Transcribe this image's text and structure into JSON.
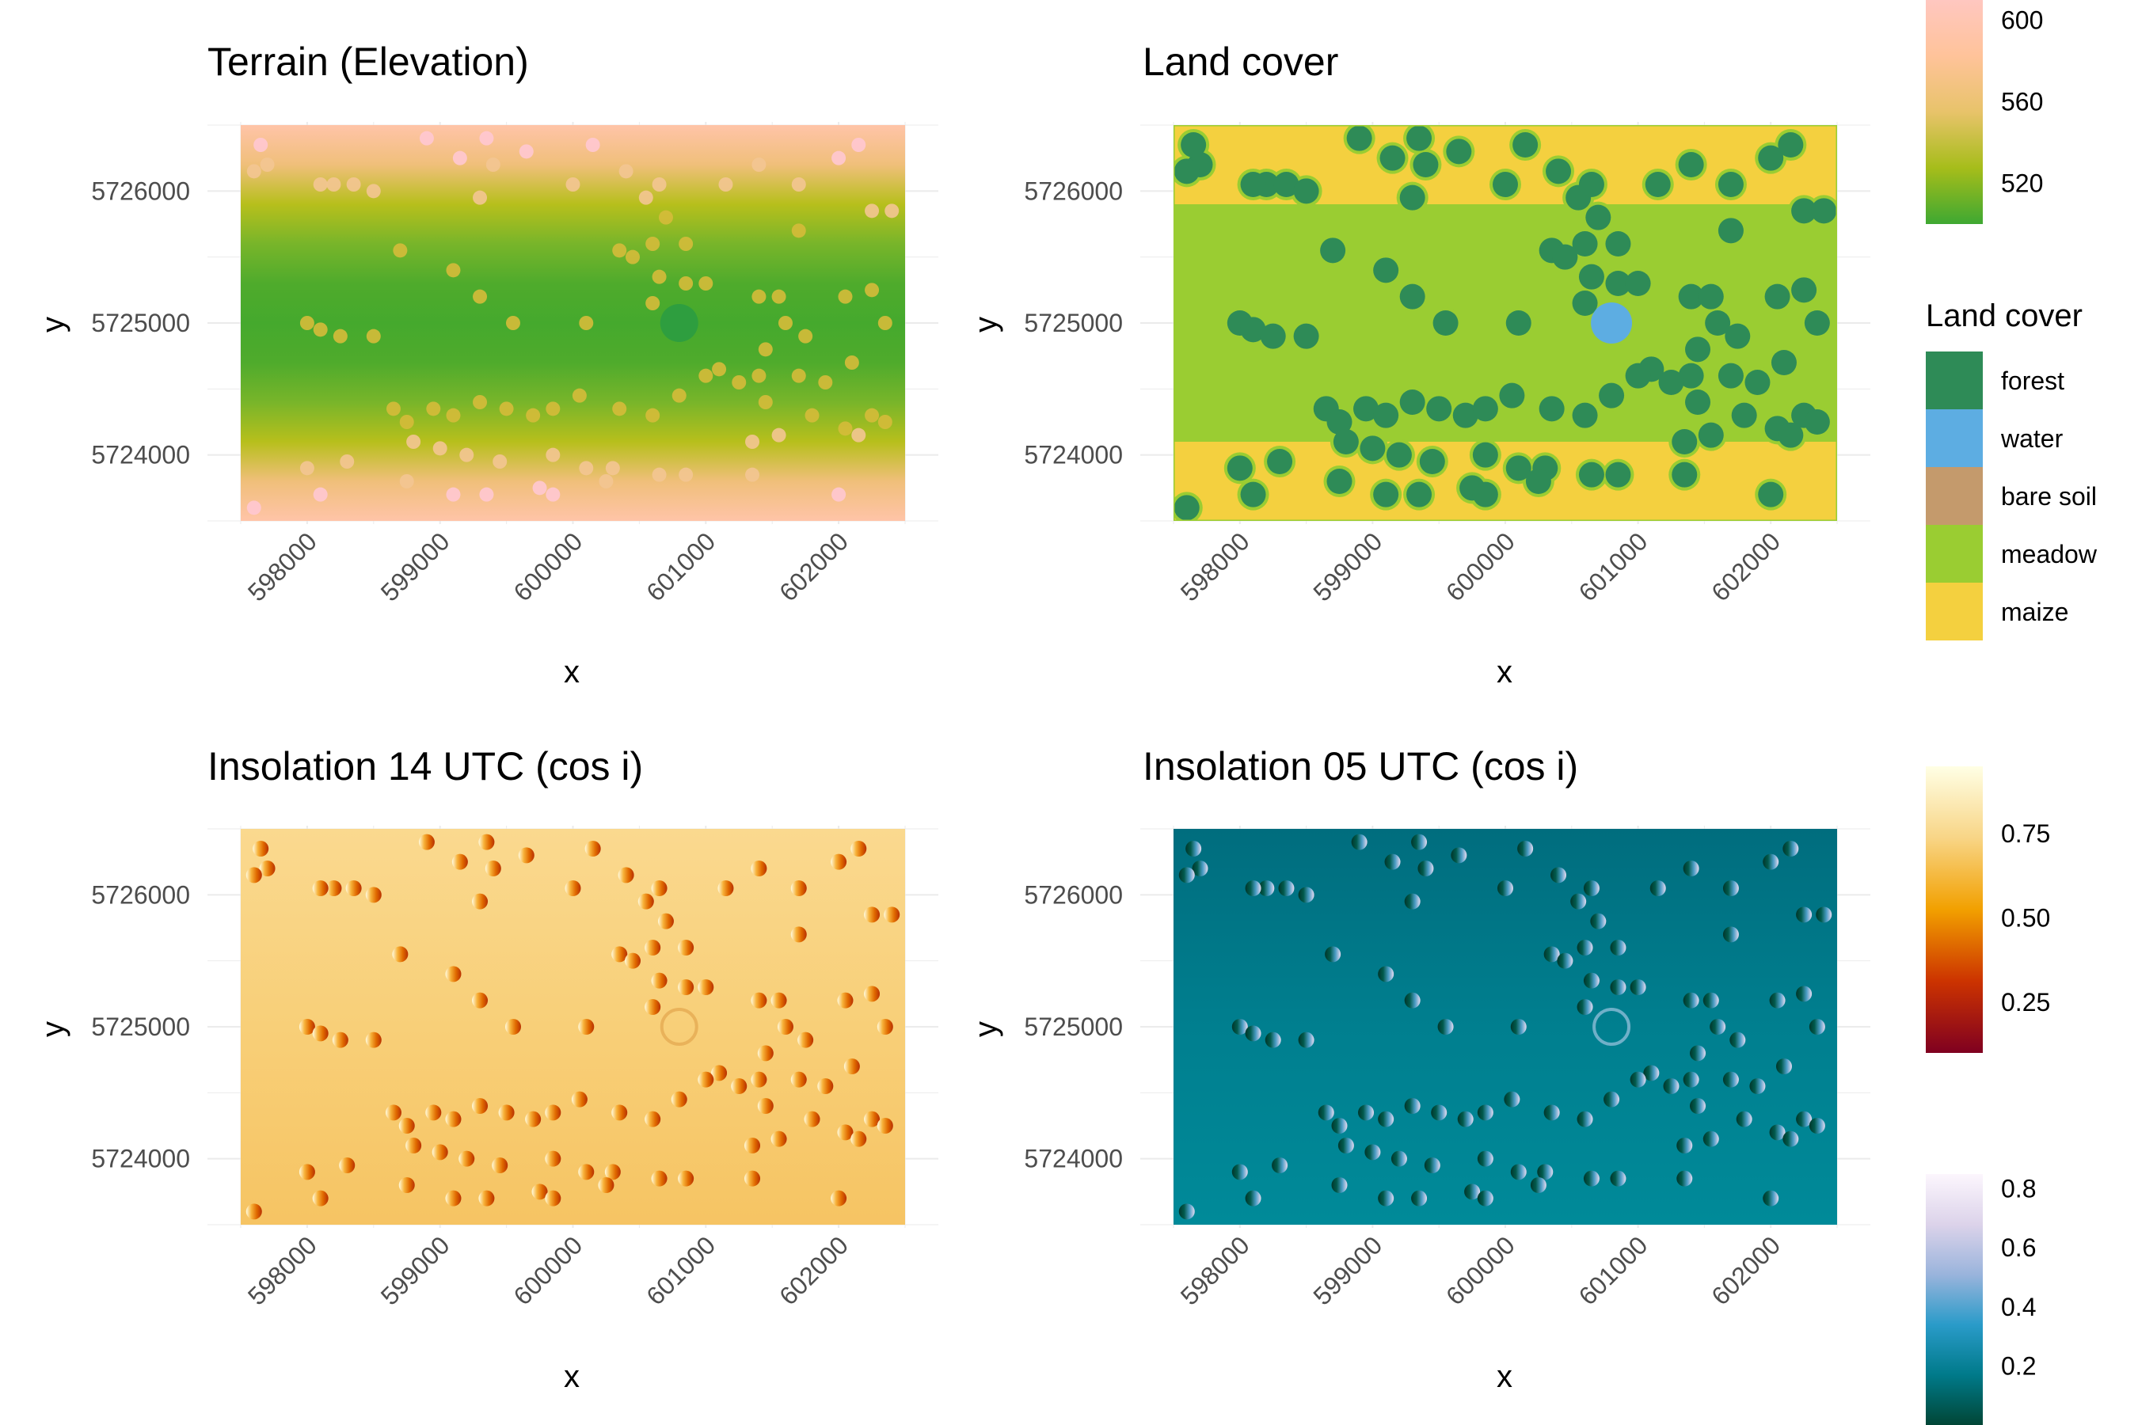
{
  "chart_data": [
    {
      "type": "heatmap",
      "title": "Terrain (Elevation)",
      "xlabel": "x",
      "ylabel": "y",
      "x_ticks": [
        "598000",
        "599000",
        "600000",
        "601000",
        "602000"
      ],
      "y_ticks": [
        "5726000",
        "5725000",
        "5724000"
      ],
      "xlim": [
        597500,
        602500
      ],
      "ylim": [
        5723500,
        5726500
      ],
      "grid": true,
      "layer": "terrain",
      "value_range": [
        500,
        610
      ],
      "colors": [
        "#3ea832",
        "#a6bd1a",
        "#e8c36a",
        "#ffc39a",
        "#ffc7c0"
      ],
      "legend": {
        "ticks": [
          "600",
          "560",
          "520"
        ],
        "tick_values": [
          600,
          560,
          520
        ],
        "placement": "right"
      }
    },
    {
      "type": "heatmap",
      "title": "Land cover",
      "xlabel": "x",
      "ylabel": "y",
      "x_ticks": [
        "598000",
        "599000",
        "600000",
        "601000",
        "602000"
      ],
      "y_ticks": [
        "5726000",
        "5725000",
        "5724000"
      ],
      "xlim": [
        597500,
        602500
      ],
      "ylim": [
        5723500,
        5726500
      ],
      "grid": true,
      "layer": "landcover",
      "categories": [
        "forest",
        "water",
        "bare soil",
        "meadow",
        "maize"
      ],
      "legend": {
        "title": "Land cover",
        "placement": "right",
        "items": [
          {
            "label": "forest",
            "color": "#2e8b57"
          },
          {
            "label": "water",
            "color": "#5dade2"
          },
          {
            "label": "bare soil",
            "color": "#c49a6c"
          },
          {
            "label": "meadow",
            "color": "#9acd32"
          },
          {
            "label": "maize",
            "color": "#f4d03f"
          }
        ]
      }
    },
    {
      "type": "heatmap",
      "title": "Insolation 14 UTC (cos i)",
      "xlabel": "x",
      "ylabel": "y",
      "x_ticks": [
        "598000",
        "599000",
        "600000",
        "601000",
        "602000"
      ],
      "y_ticks": [
        "5726000",
        "5725000",
        "5724000"
      ],
      "xlim": [
        597500,
        602500
      ],
      "ylim": [
        5723500,
        5726500
      ],
      "grid": true,
      "layer": "ins14",
      "value_range": [
        0.1,
        0.95
      ],
      "colors": [
        "#7f0020",
        "#cc3300",
        "#f2a000",
        "#f8d586",
        "#ffffe5"
      ],
      "legend": {
        "ticks": [
          "0.75",
          "0.50",
          "0.25"
        ],
        "tick_values": [
          0.75,
          0.5,
          0.25
        ],
        "placement": "right"
      }
    },
    {
      "type": "heatmap",
      "title": "Insolation 05 UTC (cos i)",
      "xlabel": "x",
      "ylabel": "y",
      "x_ticks": [
        "598000",
        "599000",
        "600000",
        "601000",
        "602000"
      ],
      "y_ticks": [
        "5726000",
        "5725000",
        "5724000"
      ],
      "xlim": [
        597500,
        602500
      ],
      "ylim": [
        5723500,
        5726500
      ],
      "grid": true,
      "layer": "ins05",
      "value_range": [
        0.0,
        0.85
      ],
      "colors": [
        "#014636",
        "#007a8a",
        "#2a9bc9",
        "#9ab4dc",
        "#dcd3ea",
        "#fcf6fd"
      ],
      "legend": {
        "ticks": [
          "0.8",
          "0.6",
          "0.4",
          "0.2"
        ],
        "tick_values": [
          0.8,
          0.6,
          0.4,
          0.2
        ],
        "placement": "right"
      }
    }
  ],
  "features": {
    "pond": {
      "x": 600800,
      "y": 5725000
    },
    "tree_clumps": [
      [
        597700,
        5726200
      ],
      [
        597650,
        5726350
      ],
      [
        597600,
        5726150
      ],
      [
        598200,
        5726050
      ],
      [
        598100,
        5726050
      ],
      [
        598350,
        5726050
      ],
      [
        598500,
        5726000
      ],
      [
        598900,
        5726400
      ],
      [
        599150,
        5726250
      ],
      [
        599300,
        5725950
      ],
      [
        599350,
        5726400
      ],
      [
        599400,
        5726200
      ],
      [
        599650,
        5726300
      ],
      [
        600000,
        5726050
      ],
      [
        600150,
        5726350
      ],
      [
        600400,
        5726150
      ],
      [
        600550,
        5725950
      ],
      [
        600650,
        5726050
      ],
      [
        600700,
        5725800
      ],
      [
        600850,
        5725600
      ],
      [
        601150,
        5726050
      ],
      [
        601400,
        5726200
      ],
      [
        601700,
        5726050
      ],
      [
        602000,
        5726250
      ],
      [
        602150,
        5726350
      ],
      [
        602250,
        5725850
      ],
      [
        602400,
        5725850
      ],
      [
        598700,
        5725550
      ],
      [
        599100,
        5725400
      ],
      [
        600350,
        5725550
      ],
      [
        600450,
        5725500
      ],
      [
        600600,
        5725600
      ],
      [
        600650,
        5725350
      ],
      [
        600850,
        5725300
      ],
      [
        601000,
        5725300
      ],
      [
        601400,
        5725200
      ],
      [
        601550,
        5725200
      ],
      [
        601700,
        5725700
      ],
      [
        602050,
        5725200
      ],
      [
        602250,
        5725250
      ],
      [
        598000,
        5725000
      ],
      [
        598100,
        5724950
      ],
      [
        598250,
        5724900
      ],
      [
        598500,
        5724900
      ],
      [
        599300,
        5725200
      ],
      [
        599550,
        5725000
      ],
      [
        600100,
        5725000
      ],
      [
        600600,
        5725150
      ],
      [
        601100,
        5724650
      ],
      [
        601400,
        5724600
      ],
      [
        601600,
        5725000
      ],
      [
        601700,
        5724600
      ],
      [
        601900,
        5724550
      ],
      [
        602100,
        5724700
      ],
      [
        602350,
        5725000
      ],
      [
        598650,
        5724350
      ],
      [
        598750,
        5724250
      ],
      [
        598950,
        5724350
      ],
      [
        599100,
        5724300
      ],
      [
        599300,
        5724400
      ],
      [
        599500,
        5724350
      ],
      [
        599700,
        5724300
      ],
      [
        599850,
        5724350
      ],
      [
        600050,
        5724450
      ],
      [
        600350,
        5724350
      ],
      [
        600600,
        5724300
      ],
      [
        600800,
        5724450
      ],
      [
        601000,
        5724600
      ],
      [
        601250,
        5724550
      ],
      [
        601450,
        5724400
      ],
      [
        601800,
        5724300
      ],
      [
        602050,
        5724200
      ],
      [
        602250,
        5724300
      ],
      [
        602350,
        5724250
      ],
      [
        602150,
        5724150
      ],
      [
        601550,
        5724150
      ],
      [
        601350,
        5724100
      ],
      [
        598800,
        5724100
      ],
      [
        599000,
        5724050
      ],
      [
        599200,
        5724000
      ],
      [
        599450,
        5723950
      ],
      [
        599850,
        5724000
      ],
      [
        600100,
        5723900
      ],
      [
        600300,
        5723900
      ],
      [
        600650,
        5723850
      ],
      [
        600850,
        5723850
      ],
      [
        598000,
        5723900
      ],
      [
        598300,
        5723950
      ],
      [
        598750,
        5723800
      ],
      [
        599100,
        5723700
      ],
      [
        599350,
        5723700
      ],
      [
        599750,
        5723750
      ],
      [
        599850,
        5723700
      ],
      [
        600250,
        5723800
      ],
      [
        601350,
        5723850
      ],
      [
        602000,
        5723700
      ],
      [
        597600,
        5723600
      ],
      [
        598100,
        5723700
      ],
      [
        601750,
        5724900
      ],
      [
        601450,
        5724800
      ]
    ]
  }
}
